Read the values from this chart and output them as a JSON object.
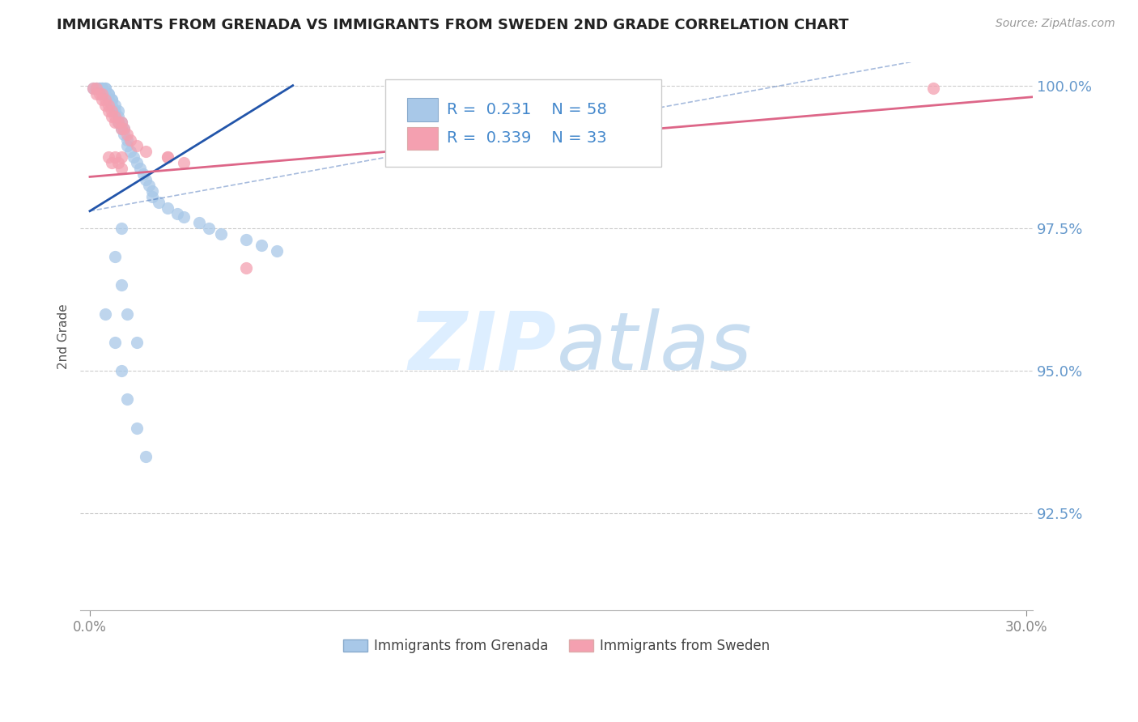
{
  "title": "IMMIGRANTS FROM GRENADA VS IMMIGRANTS FROM SWEDEN 2ND GRADE CORRELATION CHART",
  "source": "Source: ZipAtlas.com",
  "ylabel": "2nd Grade",
  "xlim": [
    -0.003,
    0.302
  ],
  "ylim": [
    0.908,
    1.004
  ],
  "yticks": [
    0.925,
    0.95,
    0.975,
    1.0
  ],
  "ytick_labels": [
    "92.5%",
    "95.0%",
    "97.5%",
    "100.0%"
  ],
  "xticks": [
    0.0,
    0.3
  ],
  "xtick_labels": [
    "0.0%",
    "30.0%"
  ],
  "grenada_R": 0.231,
  "grenada_N": 58,
  "sweden_R": 0.339,
  "sweden_N": 33,
  "grenada_color": "#a8c8e8",
  "sweden_color": "#f4a0b0",
  "grenada_line_color": "#2255aa",
  "sweden_line_color": "#dd6688",
  "background_color": "#ffffff",
  "grid_color": "#cccccc",
  "title_color": "#222222",
  "legend_text_color": "#4488cc",
  "yaxis_label_color": "#6699cc",
  "watermark_color": "#ddeeff",
  "grenada_scatter_x": [
    0.001,
    0.002,
    0.002,
    0.003,
    0.003,
    0.004,
    0.004,
    0.004,
    0.005,
    0.005,
    0.005,
    0.006,
    0.006,
    0.006,
    0.007,
    0.007,
    0.007,
    0.008,
    0.008,
    0.009,
    0.009,
    0.009,
    0.01,
    0.01,
    0.011,
    0.011,
    0.012,
    0.012,
    0.013,
    0.014,
    0.015,
    0.016,
    0.017,
    0.018,
    0.019,
    0.02,
    0.02,
    0.022,
    0.025,
    0.028,
    0.03,
    0.035,
    0.038,
    0.042,
    0.05,
    0.055,
    0.06,
    0.005,
    0.008,
    0.01,
    0.012,
    0.015,
    0.018,
    0.01,
    0.012,
    0.015,
    0.008,
    0.01
  ],
  "grenada_scatter_y": [
    0.9995,
    0.9995,
    0.9995,
    0.9995,
    0.9995,
    0.9995,
    0.9995,
    0.9995,
    0.9995,
    0.9995,
    0.9985,
    0.9985,
    0.9985,
    0.9975,
    0.9975,
    0.9975,
    0.9965,
    0.9965,
    0.9955,
    0.9955,
    0.9945,
    0.9935,
    0.9935,
    0.9925,
    0.9925,
    0.9915,
    0.9905,
    0.9895,
    0.9885,
    0.9875,
    0.9865,
    0.9855,
    0.9845,
    0.9835,
    0.9825,
    0.9815,
    0.9805,
    0.9795,
    0.9785,
    0.9775,
    0.977,
    0.976,
    0.975,
    0.974,
    0.973,
    0.972,
    0.971,
    0.96,
    0.955,
    0.95,
    0.945,
    0.94,
    0.935,
    0.965,
    0.96,
    0.955,
    0.97,
    0.975
  ],
  "sweden_scatter_x": [
    0.001,
    0.002,
    0.002,
    0.003,
    0.004,
    0.004,
    0.005,
    0.005,
    0.006,
    0.006,
    0.007,
    0.007,
    0.008,
    0.008,
    0.009,
    0.01,
    0.01,
    0.011,
    0.012,
    0.013,
    0.015,
    0.018,
    0.025,
    0.03,
    0.01,
    0.008,
    0.006,
    0.007,
    0.009,
    0.01,
    0.27,
    0.05,
    0.025
  ],
  "sweden_scatter_y": [
    0.9995,
    0.9995,
    0.9985,
    0.9985,
    0.9985,
    0.9975,
    0.9975,
    0.9965,
    0.9965,
    0.9955,
    0.9955,
    0.9945,
    0.9945,
    0.9935,
    0.9935,
    0.9935,
    0.9925,
    0.9925,
    0.9915,
    0.9905,
    0.9895,
    0.9885,
    0.9875,
    0.9865,
    0.9875,
    0.9875,
    0.9875,
    0.9865,
    0.9865,
    0.9855,
    0.9995,
    0.968,
    0.9875
  ],
  "grenada_trend": [
    0.0,
    0.978,
    0.065,
    1.0
  ],
  "sweden_trend": [
    0.0,
    0.984,
    0.302,
    0.998
  ],
  "grenada_trend_dashed": [
    0.0,
    0.978,
    0.302,
    1.008
  ]
}
